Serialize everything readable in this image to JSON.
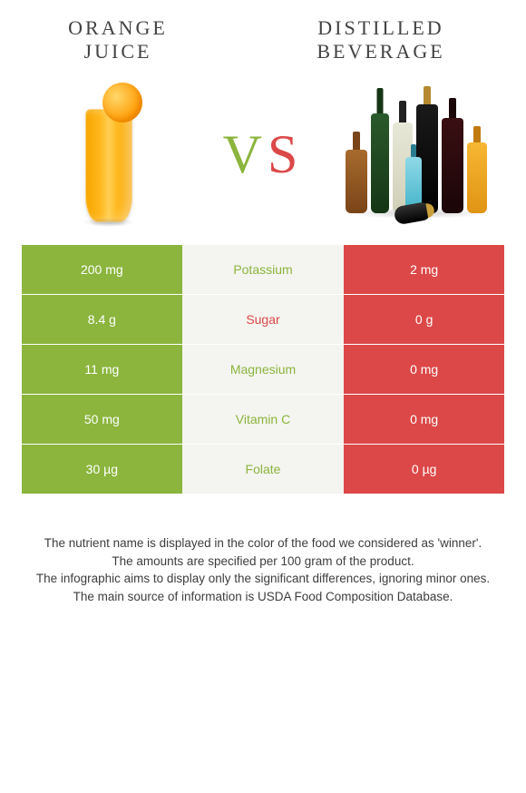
{
  "colors": {
    "left_bg": "#8bb53d",
    "mid_bg": "#f4f4f0",
    "right_bg": "#dc4848",
    "title_text": "#424242",
    "vs_green": "#8bb53d",
    "vs_red": "#dc4848",
    "footer_text": "#3d3d3d",
    "mid_green_text": "#8bb53d",
    "mid_red_text": "#dc4848"
  },
  "header": {
    "left": {
      "line1": "ORANGE",
      "line2": "JUICE",
      "fontsize": 22
    },
    "right": {
      "line1": "DISTILLED",
      "line2": "BEVERAGE",
      "fontsize": 22
    }
  },
  "vs": {
    "v": "V",
    "s": "S",
    "fontsize": 60
  },
  "nutrients": [
    {
      "name": "Potassium",
      "left": "200 mg",
      "right": "2 mg",
      "winner": "left"
    },
    {
      "name": "Sugar",
      "left": "8.4 g",
      "right": "0 g",
      "winner": "right"
    },
    {
      "name": "Magnesium",
      "left": "11 mg",
      "right": "0 mg",
      "winner": "left"
    },
    {
      "name": "Vitamin C",
      "left": "50 mg",
      "right": "0 mg",
      "winner": "left"
    },
    {
      "name": "Folate",
      "left": "30 µg",
      "right": "0 µg",
      "winner": "left"
    }
  ],
  "footer": {
    "lines": [
      "The nutrient name is displayed in the color of the food we considered as 'winner'.",
      "The amounts are specified per 100 gram of the product.",
      "The infographic aims to display only the significant differences, ignoring minor ones.",
      "The main source of information is USDA Food Composition Database."
    ],
    "fontsize": 13.5
  }
}
